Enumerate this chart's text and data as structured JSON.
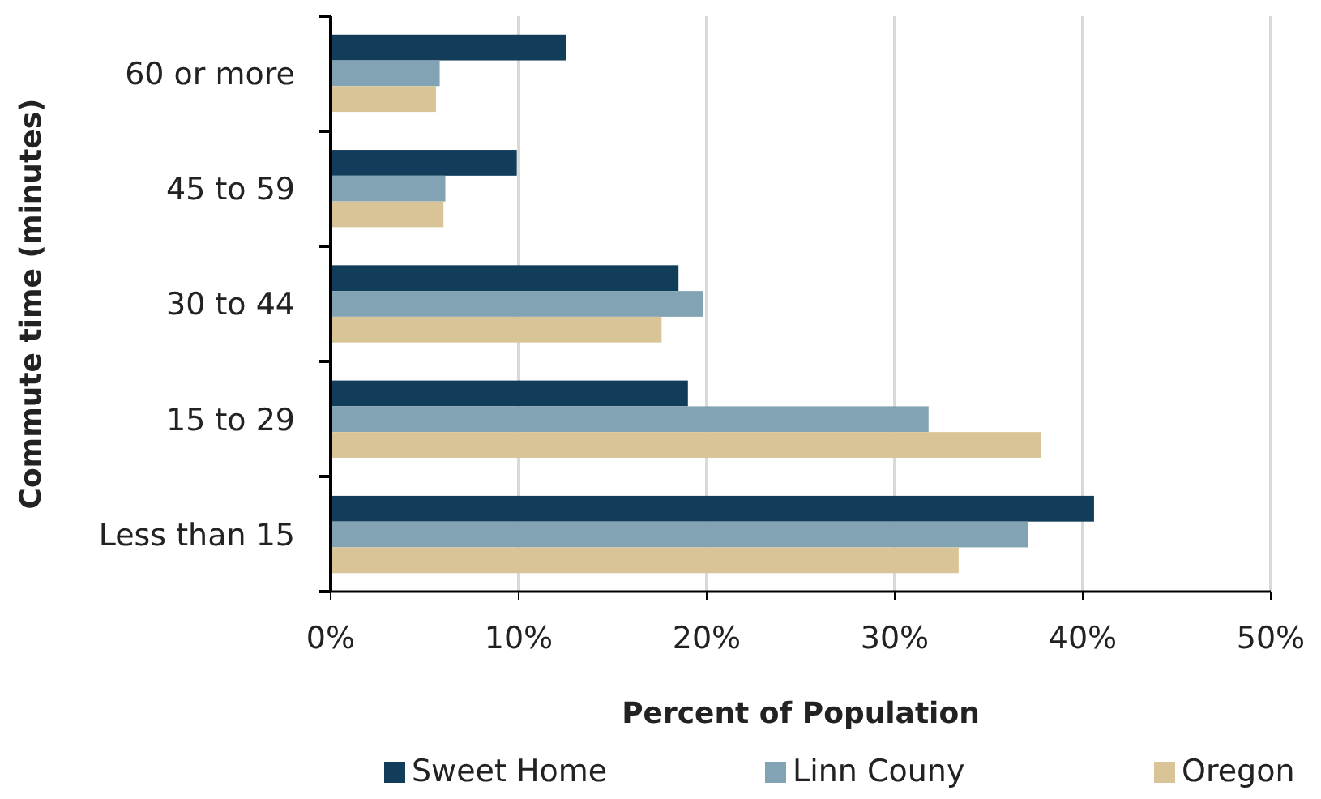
{
  "chart_data": {
    "type": "bar",
    "orientation": "horizontal",
    "xlabel": "Percent of Population",
    "ylabel": "Commute time (minutes)",
    "categories": [
      "60 or more",
      "45 to 59",
      "30 to 44",
      "15 to 29",
      "Less than 15"
    ],
    "series": [
      {
        "name": "Sweet Home",
        "color": "#123d5a",
        "values": [
          12.5,
          9.9,
          18.5,
          19.0,
          40.6
        ]
      },
      {
        "name": "Linn Couny",
        "color": "#82a3b4",
        "values": [
          5.8,
          6.1,
          19.8,
          31.8,
          37.1
        ]
      },
      {
        "name": "Oregon",
        "color": "#d8c497",
        "values": [
          5.6,
          6.0,
          17.6,
          37.8,
          33.4
        ]
      }
    ],
    "xlim": [
      0,
      50
    ],
    "xticks": [
      {
        "value": 0,
        "label": "0%"
      },
      {
        "value": 10,
        "label": "10%"
      },
      {
        "value": 20,
        "label": "20%"
      },
      {
        "value": 30,
        "label": "30%"
      },
      {
        "value": 40,
        "label": "40%"
      },
      {
        "value": 50,
        "label": "50%"
      }
    ],
    "grid": "x",
    "legend": "bottom"
  }
}
